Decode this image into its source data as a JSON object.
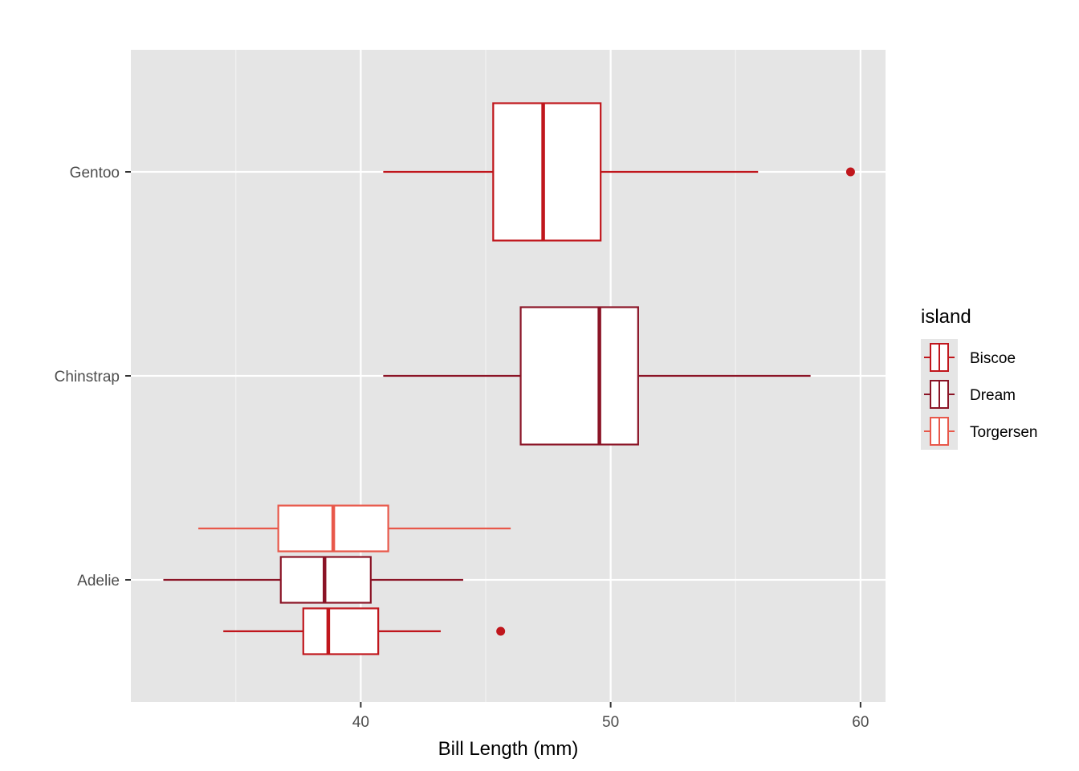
{
  "chart_data": {
    "type": "boxplot",
    "orientation": "horizontal",
    "xlabel": "Bill Length (mm)",
    "ylabel": "",
    "xlim": [
      30.8,
      61.0
    ],
    "x_ticks": [
      40,
      50,
      60
    ],
    "x_minor_ticks": [
      35,
      45,
      55
    ],
    "categories": [
      "Adelie",
      "Chinstrap",
      "Gentoo"
    ],
    "grid": true,
    "legend": {
      "title": "island",
      "placement": "right",
      "entries": [
        "Biscoe",
        "Dream",
        "Torgersen"
      ]
    },
    "colors": {
      "Biscoe": "#c0161c",
      "Dream": "#8b1426",
      "Torgersen": "#e8584a"
    },
    "series": [
      {
        "name": "Biscoe",
        "category": "Gentoo",
        "whisker_low": 40.9,
        "q1": 45.3,
        "median": 47.3,
        "q3": 49.6,
        "whisker_high": 55.9,
        "outliers": [
          59.6
        ]
      },
      {
        "name": "Dream",
        "category": "Chinstrap",
        "whisker_low": 40.9,
        "q1": 46.4,
        "median": 49.55,
        "q3": 51.1,
        "whisker_high": 58.0,
        "outliers": []
      },
      {
        "name": "Torgersen",
        "category": "Adelie",
        "whisker_low": 33.5,
        "q1": 36.7,
        "median": 38.9,
        "q3": 41.1,
        "whisker_high": 46.0,
        "outliers": []
      },
      {
        "name": "Dream",
        "category": "Adelie",
        "whisker_low": 32.1,
        "q1": 36.8,
        "median": 38.55,
        "q3": 40.4,
        "whisker_high": 44.1,
        "outliers": []
      },
      {
        "name": "Biscoe",
        "category": "Adelie",
        "whisker_low": 34.5,
        "q1": 37.7,
        "median": 38.7,
        "q3": 40.7,
        "whisker_high": 43.2,
        "outliers": [
          45.6
        ]
      }
    ]
  }
}
